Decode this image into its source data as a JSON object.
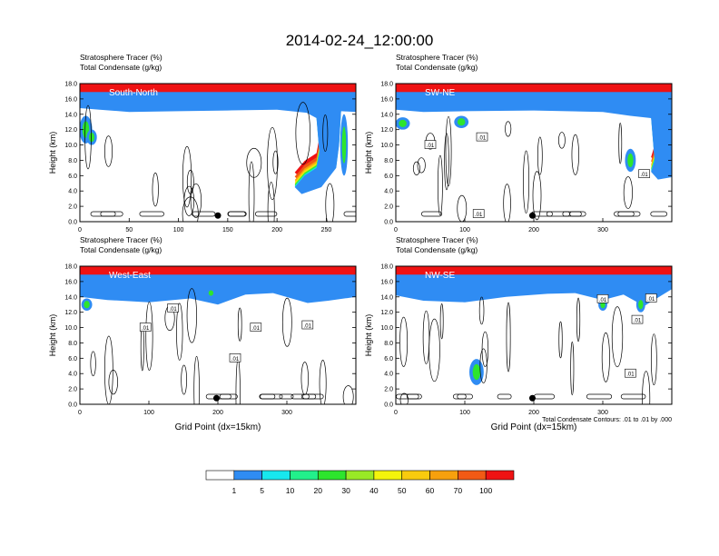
{
  "title": "2014-02-24_12:00:00",
  "colors": {
    "scale": [
      "#ffffff",
      "#2f8cf3",
      "#17e7ee",
      "#22f08b",
      "#2de52d",
      "#99e926",
      "#f4f40c",
      "#f8cb0e",
      "#f7a00d",
      "#f15a15",
      "#ef1213"
    ],
    "contour": "#000000",
    "marker": "#000000"
  },
  "chart_data": [
    {
      "type": "contour",
      "panel_label": "South-North",
      "title_lines": [
        "Stratosphere Tracer   (%)",
        "Total Condensate   (g/kg)"
      ],
      "ylabel": "Height (km)",
      "xlabel": "",
      "xlim": [
        0,
        280
      ],
      "ylim": [
        0,
        18
      ],
      "xticks": [
        "0",
        "50",
        "100",
        "150",
        "200",
        "250"
      ],
      "yticks": [
        "0.0",
        "2.0",
        "4.0",
        "6.0",
        "8.0",
        "10.0",
        "12.0",
        "14.0",
        "16.0",
        "18.0"
      ],
      "marker_x": 140,
      "contour_labels": [],
      "tracer_boundary": [
        [
          0,
          14.8
        ],
        [
          20,
          14.6
        ],
        [
          50,
          14.3
        ],
        [
          100,
          14.4
        ],
        [
          150,
          14.5
        ],
        [
          200,
          14.6
        ],
        [
          230,
          14.2
        ],
        [
          240,
          13.5
        ],
        [
          243,
          9
        ],
        [
          240,
          7
        ],
        [
          228,
          6
        ],
        [
          218,
          4.5
        ],
        [
          225,
          3.6
        ],
        [
          245,
          4.5
        ],
        [
          260,
          7
        ],
        [
          263,
          10
        ],
        [
          265,
          14.4
        ],
        [
          280,
          14.3
        ]
      ],
      "features": [
        {
          "x": 6,
          "y": 12,
          "rx": 5,
          "ry": 1.8
        },
        {
          "x": 12,
          "y": 11,
          "rx": 4,
          "ry": 1
        },
        {
          "x": 268,
          "y": 10,
          "rx": 3,
          "ry": 4
        }
      ]
    },
    {
      "type": "contour",
      "panel_label": "SW-NE",
      "title_lines": [
        "Stratosphere Tracer   (%)",
        "Total Condensate   (g/kg)"
      ],
      "ylabel": "Height (km)",
      "xlabel": "",
      "xlim": [
        0,
        400
      ],
      "ylim": [
        0,
        18
      ],
      "xticks": [
        "0",
        "100",
        "200",
        "300"
      ],
      "yticks": [
        "0.0",
        "2.0",
        "4.0",
        "6.0",
        "8.0",
        "10.0",
        "12.0",
        "14.0",
        "16.0",
        "18.0"
      ],
      "marker_x": 198,
      "contour_labels": [
        {
          "x": 50,
          "y": 10,
          "text": ".01"
        },
        {
          "x": 125,
          "y": 11,
          "text": ".01"
        },
        {
          "x": 360,
          "y": 6.2,
          "text": ".01"
        },
        {
          "x": 120,
          "y": 1,
          "text": ".01"
        }
      ],
      "tracer_boundary": [
        [
          0,
          14.6
        ],
        [
          40,
          14.3
        ],
        [
          100,
          14.4
        ],
        [
          200,
          14.5
        ],
        [
          300,
          14.3
        ],
        [
          340,
          13.8
        ],
        [
          370,
          13.5
        ],
        [
          375,
          8
        ],
        [
          370,
          6.5
        ],
        [
          380,
          5.5
        ],
        [
          400,
          5.8
        ]
      ],
      "features": [
        {
          "x": 10,
          "y": 12.8,
          "rx": 8,
          "ry": 0.8
        },
        {
          "x": 95,
          "y": 13,
          "rx": 8,
          "ry": 0.8
        },
        {
          "x": 340,
          "y": 8,
          "rx": 6,
          "ry": 1.5
        }
      ]
    },
    {
      "type": "contour",
      "panel_label": "West-East",
      "title_lines": [
        "Stratosphere Tracer   (%)",
        "Total Condensate   (g/kg)"
      ],
      "ylabel": "Height (km)",
      "xlabel": "Grid Point (dx=15km)",
      "xlim": [
        0,
        400
      ],
      "ylim": [
        0,
        18
      ],
      "xticks": [
        "0",
        "100",
        "200",
        "300"
      ],
      "yticks": [
        "0.0",
        "2.0",
        "4.0",
        "6.0",
        "8.0",
        "10.0",
        "12.0",
        "14.0",
        "16.0",
        "18.0"
      ],
      "marker_x": 198,
      "contour_labels": [
        {
          "x": 135,
          "y": 12.5,
          "text": ".01"
        },
        {
          "x": 95,
          "y": 10,
          "text": ".01"
        },
        {
          "x": 255,
          "y": 10,
          "text": ".01"
        },
        {
          "x": 330,
          "y": 10.3,
          "text": ".01"
        },
        {
          "x": 225,
          "y": 6,
          "text": ".01"
        }
      ],
      "tracer_boundary": [
        [
          0,
          14
        ],
        [
          40,
          13.6
        ],
        [
          100,
          13.3
        ],
        [
          160,
          13.8
        ],
        [
          200,
          13
        ],
        [
          240,
          14.3
        ],
        [
          280,
          14.5
        ],
        [
          330,
          13.2
        ],
        [
          360,
          13.5
        ],
        [
          400,
          14
        ]
      ],
      "features": [
        {
          "x": 10,
          "y": 13,
          "rx": 6,
          "ry": 0.8
        },
        {
          "x": 190,
          "y": 14.5,
          "rx": 5,
          "ry": 0.6
        }
      ]
    },
    {
      "type": "contour",
      "panel_label": "NW-SE",
      "title_lines": [
        "Stratosphere Tracer   (%)",
        "Total Condensate   (g/kg)"
      ],
      "ylabel": "Height (km)",
      "xlabel": "Grid Point (dx=15km)",
      "xlim": [
        0,
        400
      ],
      "ylim": [
        0,
        18
      ],
      "xticks": [
        "0",
        "100",
        "200",
        "300"
      ],
      "yticks": [
        "0.0",
        "2.0",
        "4.0",
        "6.0",
        "8.0",
        "10.0",
        "12.0",
        "14.0",
        "16.0",
        "18.0"
      ],
      "marker_x": 198,
      "contour_labels": [
        {
          "x": 300,
          "y": 13.7,
          "text": ".01"
        },
        {
          "x": 370,
          "y": 13.8,
          "text": ".01"
        },
        {
          "x": 350,
          "y": 11,
          "text": ".01"
        },
        {
          "x": 340,
          "y": 4,
          "text": ".01"
        }
      ],
      "tracer_boundary": [
        [
          0,
          14.2
        ],
        [
          40,
          13.5
        ],
        [
          100,
          13.3
        ],
        [
          160,
          14
        ],
        [
          220,
          14.4
        ],
        [
          260,
          14.5
        ],
        [
          300,
          13.6
        ],
        [
          330,
          14.3
        ],
        [
          360,
          12.8
        ],
        [
          400,
          15
        ]
      ],
      "features": [
        {
          "x": 117,
          "y": 4.2,
          "rx": 8,
          "ry": 1.7
        },
        {
          "x": 300,
          "y": 13,
          "rx": 5,
          "ry": 0.8
        },
        {
          "x": 355,
          "y": 13,
          "rx": 5,
          "ry": 1
        }
      ],
      "footnote": "Total Condensate Contours: .01 to .01 by .000"
    }
  ],
  "colorbar": {
    "labels": [
      "1",
      "5",
      "10",
      "20",
      "30",
      "40",
      "50",
      "60",
      "70",
      "100"
    ]
  }
}
